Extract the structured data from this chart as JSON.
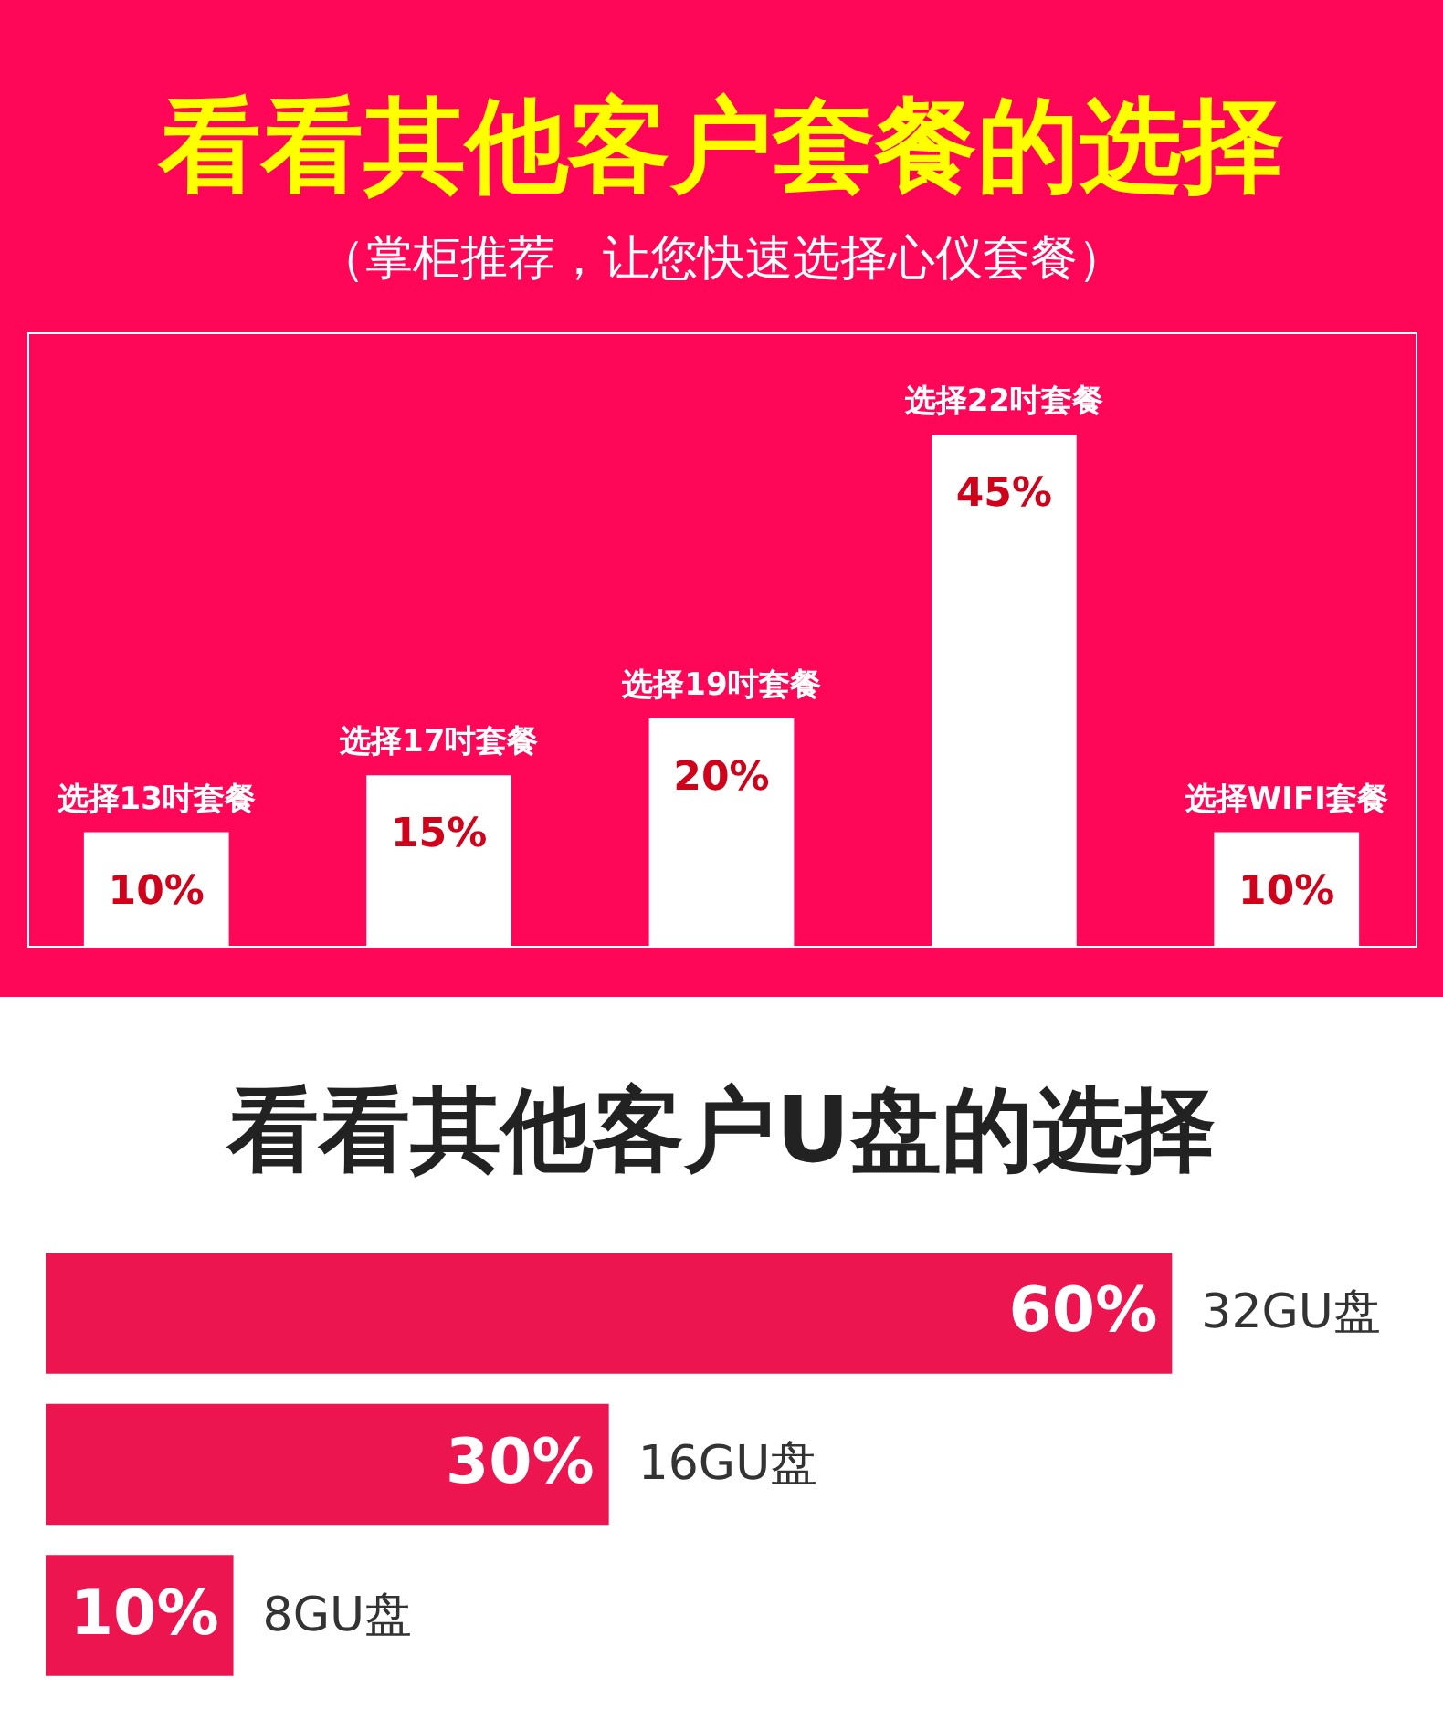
{
  "chart_data": [
    {
      "type": "bar",
      "title": "看看其他客户套餐的选择",
      "subtitle": "（掌柜推荐，让您快速选择心仪套餐）",
      "categories": [
        "选择13吋套餐",
        "选择17吋套餐",
        "选择19吋套餐",
        "选择22吋套餐",
        "选择WIFI套餐"
      ],
      "values": [
        10,
        15,
        20,
        45,
        10
      ],
      "value_labels": [
        "10%",
        "15%",
        "20%",
        "45%",
        "10%"
      ],
      "color": "#ffffff"
    },
    {
      "type": "bar",
      "orientation": "horizontal",
      "title": "看看其他客户U盘的选择",
      "categories": [
        "32GU盘",
        "16GU盘",
        "8GU盘"
      ],
      "values": [
        60,
        30,
        10
      ],
      "value_labels": [
        "60%",
        "30%",
        "10%"
      ],
      "color": "#ec1550"
    }
  ]
}
